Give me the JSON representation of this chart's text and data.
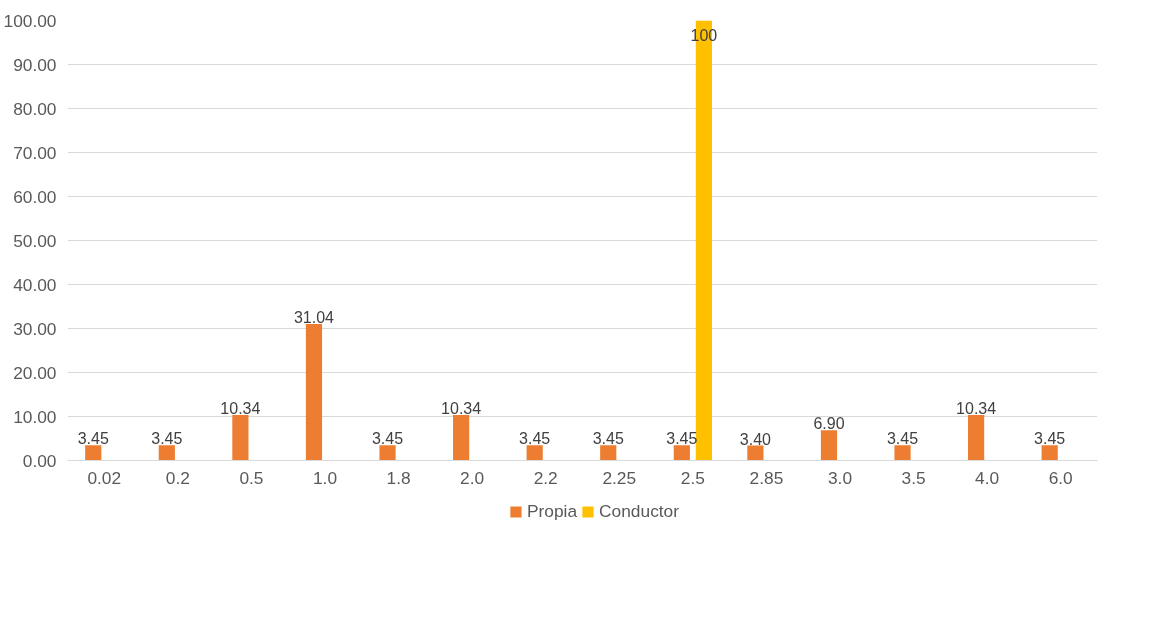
{
  "chart_data": {
    "type": "bar",
    "categories": [
      "0.02",
      "0.2",
      "0.5",
      "1.0",
      "1.8",
      "2.0",
      "2.2",
      "2.25",
      "2.5",
      "2.85",
      "3.0",
      "3.5",
      "4.0",
      "6.0"
    ],
    "series": [
      {
        "name": "Propia",
        "color": "#ed7d31",
        "values": [
          3.45,
          3.45,
          10.34,
          31.04,
          3.45,
          10.34,
          3.45,
          3.45,
          3.45,
          3.4,
          6.9,
          3.45,
          10.34,
          3.45
        ],
        "value_labels": [
          "3.45",
          "3.45",
          "10.34",
          "31.04",
          "3.45",
          "10.34",
          "3.45",
          "3.45",
          "3.45",
          "3.40",
          "6.90",
          "3.45",
          "10.34",
          "3.45"
        ]
      },
      {
        "name": "Conductor",
        "color": "#ffc000",
        "values": [
          null,
          null,
          null,
          null,
          null,
          null,
          null,
          null,
          100,
          null,
          null,
          null,
          null,
          null
        ],
        "value_labels": [
          null,
          null,
          null,
          null,
          null,
          null,
          null,
          null,
          "100",
          null,
          null,
          null,
          null,
          null
        ]
      }
    ],
    "ylim": [
      0,
      100
    ],
    "yticks": [
      {
        "value": 0,
        "label": "0.00"
      },
      {
        "value": 10,
        "label": "10.00"
      },
      {
        "value": 20,
        "label": "20.00"
      },
      {
        "value": 30,
        "label": "30.00"
      },
      {
        "value": 40,
        "label": "40.00"
      },
      {
        "value": 50,
        "label": "50.00"
      },
      {
        "value": 60,
        "label": "60.00"
      },
      {
        "value": 70,
        "label": "70.00"
      },
      {
        "value": 80,
        "label": "80.00"
      },
      {
        "value": 90,
        "label": "90.00"
      },
      {
        "value": 100,
        "label": "100.00"
      }
    ],
    "grid": "y",
    "legend": "bottom"
  }
}
